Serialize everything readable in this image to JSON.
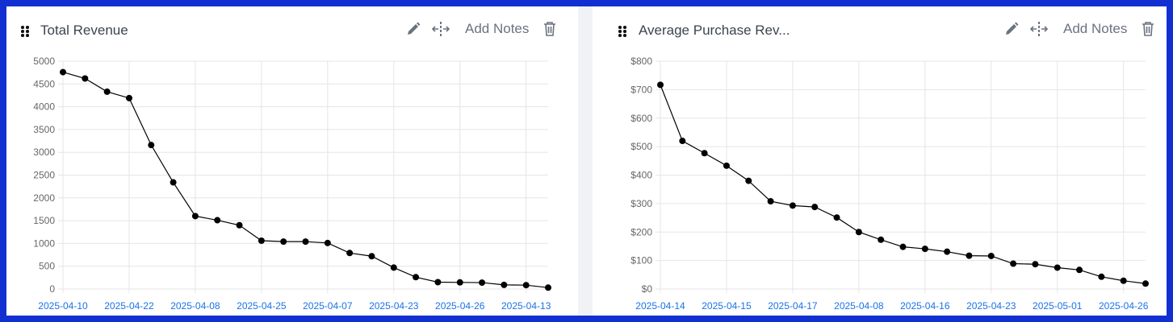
{
  "colors": {
    "frame": "#1230d2",
    "line": "#000000",
    "xtick": "#1a73e8",
    "grid": "#e5e5e5"
  },
  "panels": [
    {
      "title": "Total Revenue",
      "add_notes": "Add Notes",
      "icons": [
        "drag-handle-icon",
        "pencil-icon",
        "move-icon",
        "trash-icon"
      ]
    },
    {
      "title": "Average Purchase Rev...",
      "add_notes": "Add Notes",
      "icons": [
        "drag-handle-icon",
        "pencil-icon",
        "move-icon",
        "trash-icon"
      ]
    }
  ],
  "chart_data": [
    {
      "type": "line",
      "title": "Total Revenue",
      "ylim": [
        0,
        5000
      ],
      "yticks": [
        "0",
        "500",
        "1000",
        "1500",
        "2000",
        "2500",
        "3000",
        "3500",
        "4000",
        "4500",
        "5000"
      ],
      "xtick_labels": [
        "2025-04-10",
        "2025-04-22",
        "2025-04-08",
        "2025-04-25",
        "2025-04-07",
        "2025-04-23",
        "2025-04-26",
        "2025-04-13"
      ],
      "values": [
        4760,
        4620,
        4330,
        4190,
        3160,
        2340,
        1600,
        1510,
        1400,
        1060,
        1040,
        1040,
        1010,
        790,
        720,
        470,
        260,
        150,
        145,
        140,
        90,
        85,
        30
      ]
    },
    {
      "type": "line",
      "title": "Average Purchase Rev...",
      "ylim": [
        0,
        800
      ],
      "yticks": [
        "$0",
        "$100",
        "$200",
        "$300",
        "$400",
        "$500",
        "$600",
        "$700",
        "$800"
      ],
      "xtick_labels": [
        "2025-04-14",
        "2025-04-15",
        "2025-04-17",
        "2025-04-08",
        "2025-04-16",
        "2025-04-23",
        "2025-05-01",
        "2025-04-26"
      ],
      "values": [
        717,
        520,
        477,
        433,
        380,
        308,
        293,
        288,
        251,
        200,
        173,
        148,
        141,
        131,
        117,
        116,
        89,
        87,
        75,
        67,
        43,
        29,
        19
      ]
    }
  ]
}
